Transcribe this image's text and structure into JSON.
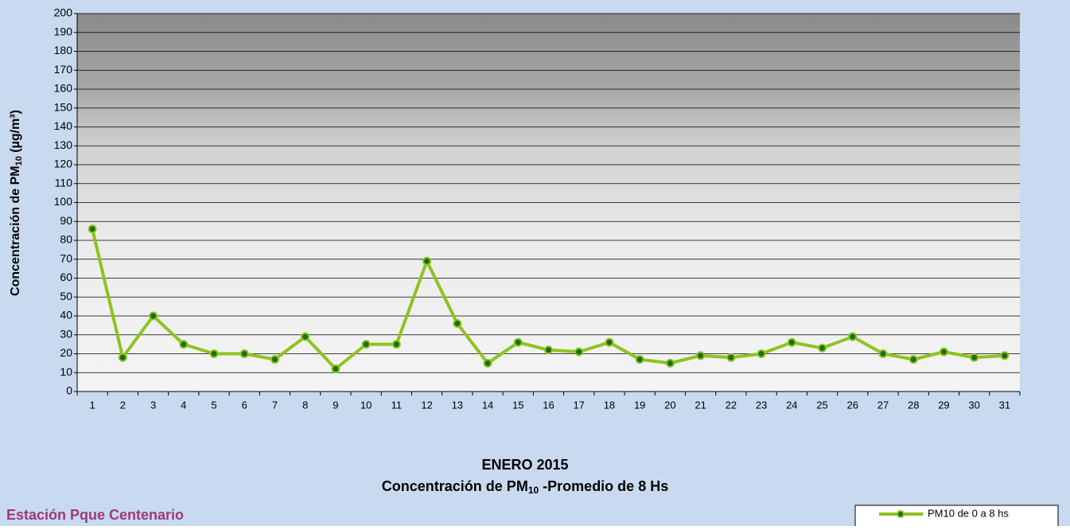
{
  "chart_data": {
    "type": "line",
    "title": [
      "ENERO 2015",
      [
        "Concentración de PM",
        "10",
        " -Promedio de 8 Hs"
      ]
    ],
    "y_label": [
      "Concentración de PM",
      "10",
      " (µg/m³)"
    ],
    "annotation": "Estación Pque Centenario",
    "categories": [
      "1",
      "2",
      "3",
      "4",
      "5",
      "6",
      "7",
      "8",
      "9",
      "10",
      "11",
      "12",
      "13",
      "14",
      "15",
      "16",
      "17",
      "18",
      "19",
      "20",
      "21",
      "22",
      "23",
      "24",
      "25",
      "26",
      "27",
      "28",
      "29",
      "30",
      "31"
    ],
    "series": [
      {
        "name": "PM10 de 0 a 8 hs",
        "color": "#8fc31f",
        "values": [
          86,
          18,
          40,
          25,
          20,
          20,
          17,
          29,
          12,
          25,
          25,
          69,
          36,
          15,
          26,
          22,
          21,
          26,
          17,
          15,
          19,
          18,
          20,
          26,
          23,
          29,
          20,
          17,
          21,
          18,
          19
        ]
      }
    ],
    "ylim": [
      0,
      200
    ],
    "yticks": [
      0,
      10,
      20,
      30,
      40,
      50,
      60,
      70,
      80,
      90,
      100,
      110,
      120,
      130,
      140,
      150,
      160,
      170,
      180,
      190,
      200
    ],
    "grid": true,
    "legend": "bottom-right"
  }
}
